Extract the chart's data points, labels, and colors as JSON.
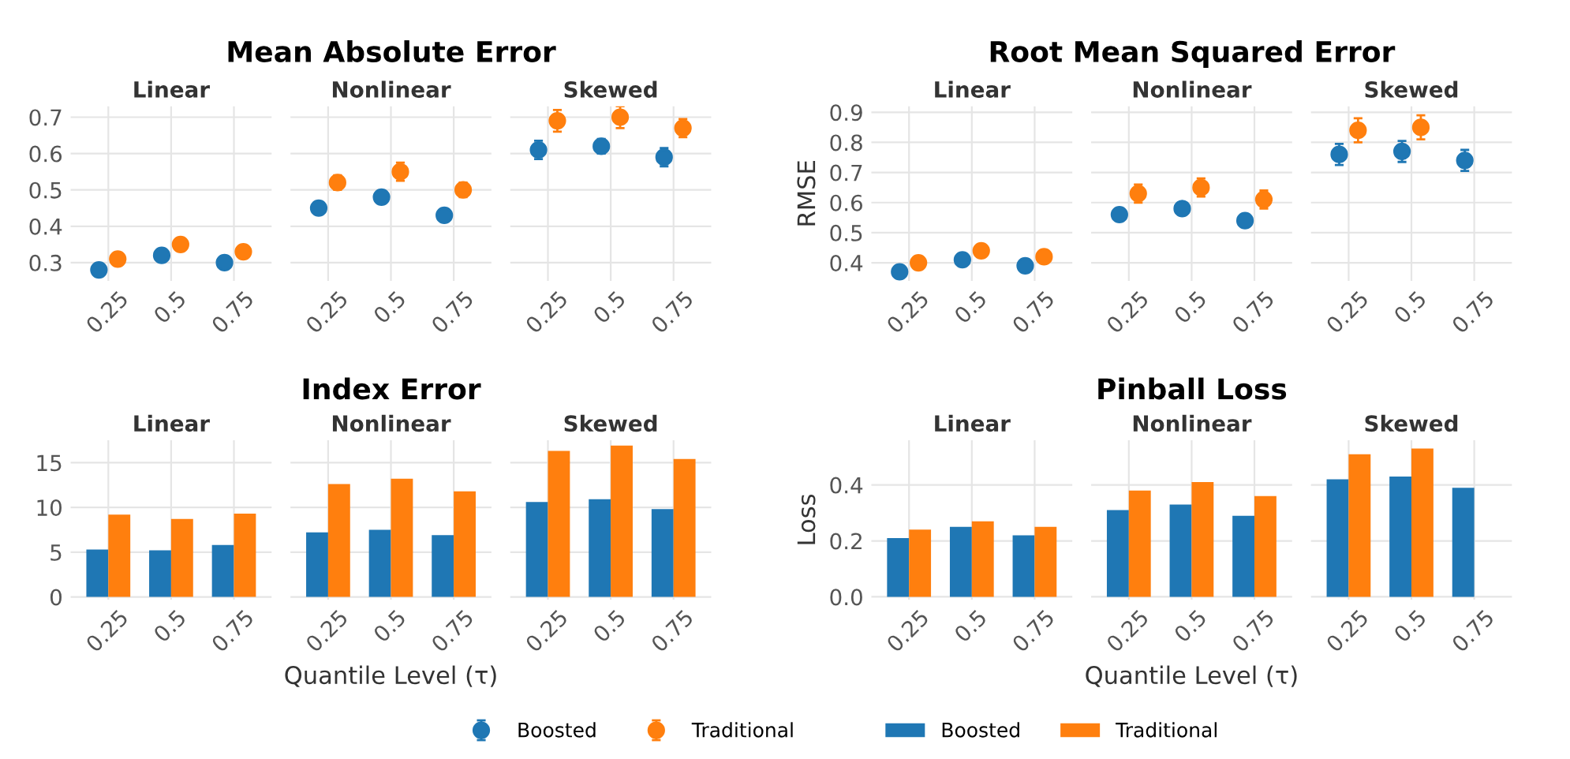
{
  "chart_data": [
    {
      "type": "scatter",
      "subtitle": "Linear",
      "categories": [
        "0.25",
        "0.5",
        "0.75"
      ],
      "marker": "circle",
      "legend": "bottom",
      "grid": true,
      "ylim": [
        0.25,
        0.73
      ],
      "yticks": [
        0.3,
        0.4,
        0.5,
        0.6,
        0.7
      ],
      "series": [
        {
          "name": "Boosted",
          "color": "#1f77b4",
          "values": [
            0.28,
            0.32,
            0.3
          ],
          "errors": [
            0.005,
            0.005,
            0.005
          ]
        },
        {
          "name": "Traditional",
          "color": "#ff7f0e",
          "values": [
            0.31,
            0.35,
            0.33
          ],
          "errors": [
            0.005,
            0.005,
            0.005
          ]
        }
      ]
    },
    {
      "type": "scatter",
      "title": "Mean Absolute Error",
      "subtitle": "Nonlinear",
      "categories": [
        "0.25",
        "0.5",
        "0.75"
      ],
      "marker": "circle",
      "grid": true,
      "tick_labels": "x",
      "ylim": [
        0.25,
        0.73
      ],
      "yticks": [
        0.3,
        0.4,
        0.5,
        0.6,
        0.7
      ],
      "series": [
        {
          "color": "#1f77b4",
          "values": [
            0.45,
            0.48,
            0.43
          ],
          "errors": [
            0.015,
            0.015,
            0.01
          ]
        },
        {
          "color": "#ff7f0e",
          "values": [
            0.52,
            0.55,
            0.5
          ],
          "errors": [
            0.02,
            0.025,
            0.02
          ]
        }
      ]
    },
    {
      "type": "scatter",
      "subtitle": "Skewed",
      "categories": [
        "0.25",
        "0.5",
        "0.75"
      ],
      "marker": "circle",
      "grid": true,
      "tick_labels": "x",
      "ylim": [
        0.25,
        0.73
      ],
      "yticks": [
        0.3,
        0.4,
        0.5,
        0.6,
        0.7
      ],
      "series": [
        {
          "color": "#1f77b4",
          "values": [
            0.61,
            0.62,
            0.59
          ],
          "errors": [
            0.025,
            0.02,
            0.025
          ]
        },
        {
          "color": "#ff7f0e",
          "values": [
            0.69,
            0.7,
            0.67
          ],
          "errors": [
            0.03,
            0.03,
            0.025
          ]
        }
      ]
    },
    {
      "type": "scatter",
      "subtitle": "Linear",
      "ylabel": "RMSE",
      "categories": [
        "0.25",
        "0.5",
        "0.75"
      ],
      "marker": "circle",
      "grid": true,
      "ylim": [
        0.34,
        0.92
      ],
      "yticks": [
        0.4,
        0.5,
        0.6,
        0.7,
        0.8,
        0.9
      ],
      "series": [
        {
          "color": "#1f77b4",
          "values": [
            0.37,
            0.41,
            0.39
          ],
          "errors": [
            0.005,
            0.005,
            0.005
          ]
        },
        {
          "color": "#ff7f0e",
          "values": [
            0.4,
            0.44,
            0.42
          ],
          "errors": [
            0.005,
            0.005,
            0.005
          ]
        }
      ]
    },
    {
      "type": "scatter",
      "title": "Root Mean Squared Error",
      "subtitle": "Nonlinear",
      "categories": [
        "0.25",
        "0.5",
        "0.75"
      ],
      "marker": "circle",
      "grid": true,
      "tick_labels": "x",
      "ylim": [
        0.34,
        0.92
      ],
      "yticks": [
        0.4,
        0.5,
        0.6,
        0.7,
        0.8,
        0.9
      ],
      "series": [
        {
          "color": "#1f77b4",
          "values": [
            0.56,
            0.58,
            0.54
          ],
          "errors": [
            0.02,
            0.02,
            0.015
          ]
        },
        {
          "color": "#ff7f0e",
          "values": [
            0.63,
            0.65,
            0.61
          ],
          "errors": [
            0.03,
            0.03,
            0.03
          ]
        }
      ]
    },
    {
      "type": "scatter",
      "subtitle": "Skewed",
      "categories": [
        "0.25",
        "0.5",
        "0.75"
      ],
      "marker": "circle",
      "grid": true,
      "tick_labels": "x",
      "ylim": [
        0.34,
        0.92
      ],
      "yticks": [
        0.4,
        0.5,
        0.6,
        0.7,
        0.8,
        0.9
      ],
      "series": [
        {
          "color": "#1f77b4",
          "values": [
            0.76,
            0.77,
            0.74
          ],
          "errors": [
            0.035,
            0.035,
            0.035
          ]
        },
        {
          "color": "#ff7f0e",
          "values": [
            0.84,
            0.85,
            null
          ],
          "errors": [
            0.04,
            0.04,
            null
          ]
        }
      ]
    },
    {
      "type": "bar",
      "subtitle": "Linear",
      "categories": [
        "0.25",
        "0.5",
        "0.75"
      ],
      "legend": "bottom",
      "grid": true,
      "ylim": [
        -0.3,
        17.5
      ],
      "yticks": [
        0,
        5,
        10,
        15
      ],
      "series": [
        {
          "name": "Boosted",
          "color": "#1f77b4",
          "values": [
            5.3,
            5.2,
            5.8
          ]
        },
        {
          "name": "Traditional",
          "color": "#ff7f0e",
          "values": [
            9.2,
            8.7,
            9.3
          ]
        }
      ]
    },
    {
      "type": "bar",
      "title": "Index Error",
      "subtitle": "Nonlinear",
      "xlabel": "Quantile Level (τ)",
      "categories": [
        "0.25",
        "0.5",
        "0.75"
      ],
      "grid": true,
      "tick_labels": "x",
      "ylim": [
        -0.3,
        17.5
      ],
      "yticks": [
        0,
        5,
        10,
        15
      ],
      "series": [
        {
          "color": "#1f77b4",
          "values": [
            7.2,
            7.5,
            6.9
          ]
        },
        {
          "color": "#ff7f0e",
          "values": [
            12.6,
            13.2,
            11.8
          ]
        }
      ]
    },
    {
      "type": "bar",
      "subtitle": "Skewed",
      "categories": [
        "0.25",
        "0.5",
        "0.75"
      ],
      "grid": true,
      "tick_labels": "x",
      "ylim": [
        -0.3,
        17.5
      ],
      "yticks": [
        0,
        5,
        10,
        15
      ],
      "series": [
        {
          "color": "#1f77b4",
          "values": [
            10.6,
            10.9,
            9.8
          ]
        },
        {
          "color": "#ff7f0e",
          "values": [
            16.3,
            16.9,
            15.4
          ]
        }
      ]
    },
    {
      "type": "bar",
      "subtitle": "Linear",
      "ylabel": "Loss",
      "categories": [
        "0.25",
        "0.5",
        "0.75"
      ],
      "grid": true,
      "ylim": [
        -0.01,
        0.56
      ],
      "yticks": [
        {
          "value": 0,
          "label": "0.0"
        },
        0.2,
        0.4
      ],
      "series": [
        {
          "color": "#1f77b4",
          "values": [
            0.21,
            0.25,
            0.22
          ]
        },
        {
          "color": "#ff7f0e",
          "values": [
            0.24,
            0.27,
            0.25
          ]
        }
      ]
    },
    {
      "type": "bar",
      "title": "Pinball Loss",
      "subtitle": "Nonlinear",
      "xlabel": "Quantile Level (τ)",
      "categories": [
        "0.25",
        "0.5",
        "0.75"
      ],
      "grid": true,
      "tick_labels": "x",
      "ylim": [
        -0.01,
        0.56
      ],
      "yticks": [
        0,
        0.2,
        0.4
      ],
      "series": [
        {
          "color": "#1f77b4",
          "values": [
            0.31,
            0.33,
            0.29
          ]
        },
        {
          "color": "#ff7f0e",
          "values": [
            0.38,
            0.41,
            0.36
          ]
        }
      ]
    },
    {
      "type": "bar",
      "subtitle": "Skewed",
      "categories": [
        "0.25",
        "0.5",
        "0.75"
      ],
      "grid": true,
      "tick_labels": "x",
      "ylim": [
        -0.01,
        0.56
      ],
      "yticks": [
        0,
        0.2,
        0.4
      ],
      "series": [
        {
          "color": "#1f77b4",
          "values": [
            0.42,
            0.43,
            0.39
          ]
        },
        {
          "color": "#ff7f0e",
          "values": [
            0.51,
            0.53,
            null
          ]
        }
      ]
    }
  ]
}
